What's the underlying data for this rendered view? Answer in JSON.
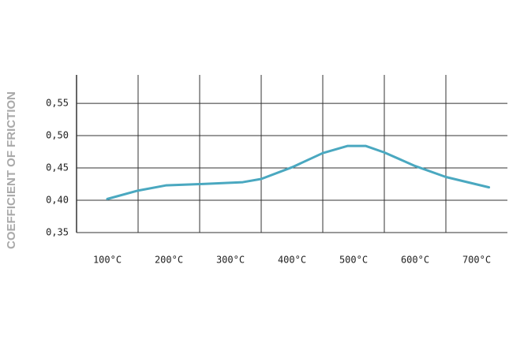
{
  "chart_data": {
    "type": "line",
    "y_label": "COEFFICIENT OF FRICTION",
    "x": [
      100,
      150,
      195,
      250,
      320,
      350,
      400,
      450,
      490,
      520,
      550,
      600,
      650,
      720
    ],
    "series": [
      {
        "color": "#4aa8c0",
        "values": [
          0.402,
          0.415,
          0.423,
          0.425,
          0.428,
          0.433,
          0.451,
          0.473,
          0.484,
          0.484,
          0.474,
          0.453,
          0.436,
          0.42
        ]
      }
    ],
    "xlim": [
      50,
      750
    ],
    "xticks": [
      {
        "value": 100,
        "label": "100°C"
      },
      {
        "value": 200,
        "label": "200°C"
      },
      {
        "value": 300,
        "label": "300°C"
      },
      {
        "value": 400,
        "label": "400°C"
      },
      {
        "value": 500,
        "label": "500°C"
      },
      {
        "value": 600,
        "label": "600°C"
      },
      {
        "value": 700,
        "label": "700°C"
      }
    ],
    "ylim": [
      0.35,
      0.594
    ],
    "yticks": [
      {
        "value": 0.35,
        "label": "0,35"
      },
      {
        "value": 0.4,
        "label": "0,40"
      },
      {
        "value": 0.45,
        "label": "0,45"
      },
      {
        "value": 0.5,
        "label": "0,50"
      },
      {
        "value": 0.55,
        "label": "0,55"
      }
    ],
    "grid": true
  }
}
